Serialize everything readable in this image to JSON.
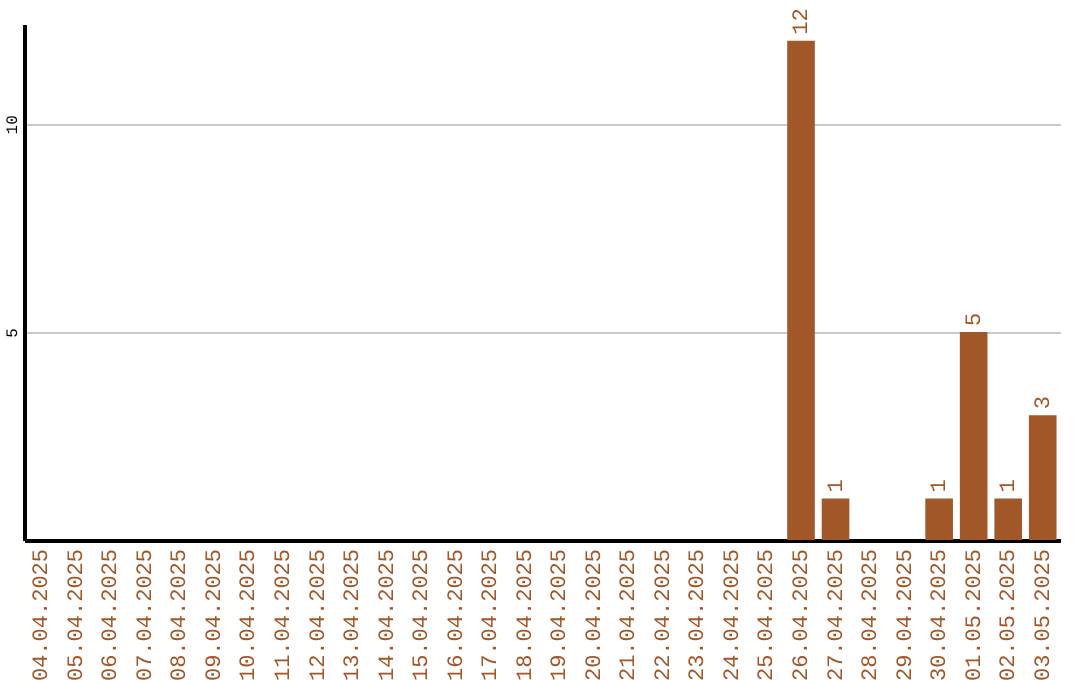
{
  "chart_data": {
    "type": "bar",
    "categories": [
      "04.04.2025",
      "05.04.2025",
      "06.04.2025",
      "07.04.2025",
      "08.04.2025",
      "09.04.2025",
      "10.04.2025",
      "11.04.2025",
      "12.04.2025",
      "13.04.2025",
      "14.04.2025",
      "15.04.2025",
      "16.04.2025",
      "17.04.2025",
      "18.04.2025",
      "19.04.2025",
      "20.04.2025",
      "21.04.2025",
      "22.04.2025",
      "23.04.2025",
      "24.04.2025",
      "25.04.2025",
      "26.04.2025",
      "27.04.2025",
      "28.04.2025",
      "29.04.2025",
      "30.04.2025",
      "01.05.2025",
      "02.05.2025",
      "03.05.2025"
    ],
    "values": [
      0,
      0,
      0,
      0,
      0,
      0,
      0,
      0,
      0,
      0,
      0,
      0,
      0,
      0,
      0,
      0,
      0,
      0,
      0,
      0,
      0,
      0,
      12,
      1,
      0,
      0,
      1,
      5,
      1,
      3
    ],
    "value_labels": [
      null,
      null,
      null,
      null,
      null,
      null,
      null,
      null,
      null,
      null,
      null,
      null,
      null,
      null,
      null,
      null,
      null,
      null,
      null,
      null,
      null,
      null,
      "12",
      "1",
      null,
      null,
      "1",
      "5",
      "1",
      "3"
    ],
    "color": "#a25728",
    "ylim": [
      0,
      12.4
    ],
    "yticks": [
      5,
      10
    ],
    "grid": "y"
  }
}
